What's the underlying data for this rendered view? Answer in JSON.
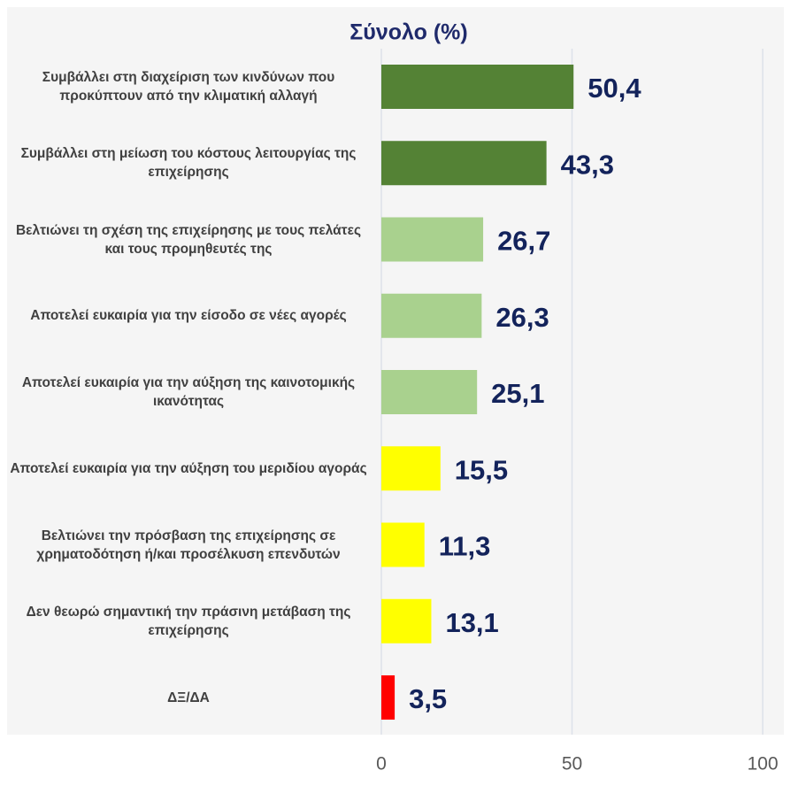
{
  "chart_data": {
    "type": "barh",
    "title": "Σύνολο  (%)",
    "categories": [
      "Συμβάλλει στη διαχείριση των κινδύνων που προκύπτουν από την κλιματική αλλαγή",
      "Συμβάλλει στη μείωση του κόστους λειτουργίας της επιχείρησης",
      "Βελτιώνει τη σχέση της επιχείρησης με τους πελάτες και τους προμηθευτές της",
      "Αποτελεί ευκαιρία για την είσοδο σε νέες αγορές",
      "Αποτελεί ευκαιρία για την αύξηση της καινοτομικής ικανότητας",
      "Αποτελεί ευκαιρία για την αύξηση του μεριδίου αγοράς",
      "Βελτιώνει την πρόσβαση της επιχείρησης σε χρηματοδότηση ή/και προσέλκυση επενδυτών",
      "Δεν θεωρώ σημαντική την πράσινη μετάβαση της επιχείρησης",
      "ΔΞ/ΔΑ"
    ],
    "values": [
      50.4,
      43.3,
      26.7,
      26.3,
      25.1,
      15.5,
      11.3,
      13.1,
      3.5
    ],
    "value_labels": [
      "50,4",
      "43,3",
      "26,7",
      "26,3",
      "25,1",
      "15,5",
      "11,3",
      "13,1",
      "3,5"
    ],
    "colors": [
      "#548235",
      "#548235",
      "#a9d18e",
      "#a9d18e",
      "#a9d18e",
      "#ffff00",
      "#ffff00",
      "#ffff00",
      "#ff0000"
    ],
    "xlim": [
      0,
      100
    ],
    "xticks": [
      0,
      50,
      100
    ],
    "grid": true
  }
}
